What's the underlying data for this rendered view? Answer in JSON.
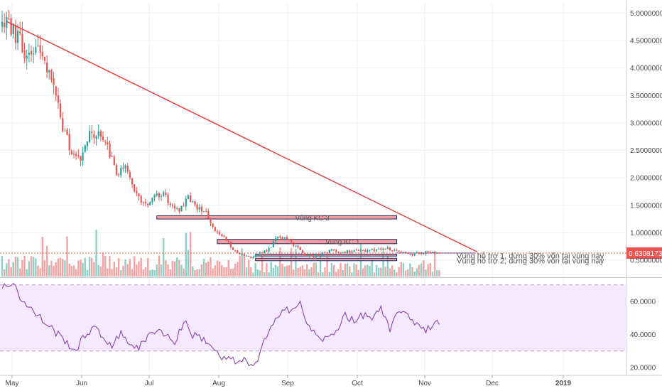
{
  "chart_data": {
    "type": "candlestick",
    "colors": {
      "up": "#26a69a",
      "down": "#ef5350",
      "up_vol": "#8fd0c6",
      "down_vol": "#f4a3a3",
      "trendline": "#e53935",
      "rsi": "#8e44ad",
      "rsi_band": "#f3e8fd",
      "price_tag": "#ef5350",
      "zone_fill": "#f28b96",
      "zone_border": "#1f2d5c"
    },
    "x_ticks": [
      "May",
      "Jun",
      "Jul",
      "Aug",
      "Sep",
      "Oct",
      "Nov",
      "Dec",
      "2019"
    ],
    "price_axis": {
      "ticks": [
        "5.0000000",
        "4.5000000",
        "4.0000000",
        "3.5000000",
        "3.0000000",
        "2.5000000",
        "2.0000000",
        "1.5000000",
        "1.0000000",
        "0.5000000"
      ],
      "ylim": [
        0.26,
        5.12
      ]
    },
    "last_price": {
      "value": 0.63,
      "label": "0.6308173"
    },
    "trendline": {
      "from": [
        "2018-04-29",
        4.85
      ],
      "to": [
        "2018-11-25",
        0.65
      ]
    },
    "zones": [
      {
        "label": "Vùng KC 2",
        "from": "2018-07-05",
        "to": "2018-10-20",
        "low": 1.25,
        "high": 1.31
      },
      {
        "label": "Vùng KC 1",
        "from": "2018-08-01",
        "to": "2018-10-20",
        "low": 0.8,
        "high": 0.88
      },
      {
        "label": "",
        "from": "2018-08-18",
        "to": "2018-10-20",
        "low": 0.575,
        "high": 0.61
      },
      {
        "label": "",
        "from": "2018-08-18",
        "to": "2018-10-20",
        "low": 0.49,
        "high": 0.535
      }
    ],
    "annotations": [
      "Vùng hỗ trợ 1, dừng 30% vốn tại vùng này",
      "Vùng hỗ trợ 2, dừng 30% vốn tại vùng này"
    ],
    "price_anchors": [
      [
        "2018-04-27",
        4.75
      ],
      [
        "2018-04-30",
        4.85
      ],
      [
        "2018-05-04",
        4.55
      ],
      [
        "2018-05-08",
        4.25
      ],
      [
        "2018-05-12",
        4.4
      ],
      [
        "2018-05-16",
        4.05
      ],
      [
        "2018-05-20",
        3.75
      ],
      [
        "2018-05-24",
        2.95
      ],
      [
        "2018-05-28",
        2.45
      ],
      [
        "2018-06-01",
        2.35
      ],
      [
        "2018-06-05",
        2.8
      ],
      [
        "2018-06-09",
        2.75
      ],
      [
        "2018-06-13",
        2.55
      ],
      [
        "2018-06-17",
        2.1
      ],
      [
        "2018-06-21",
        2.25
      ],
      [
        "2018-06-25",
        1.8
      ],
      [
        "2018-06-29",
        1.5
      ],
      [
        "2018-07-03",
        1.62
      ],
      [
        "2018-07-07",
        1.72
      ],
      [
        "2018-07-11",
        1.55
      ],
      [
        "2018-07-15",
        1.4
      ],
      [
        "2018-07-19",
        1.65
      ],
      [
        "2018-07-23",
        1.45
      ],
      [
        "2018-07-27",
        1.35
      ],
      [
        "2018-07-31",
        1.0
      ],
      [
        "2018-08-04",
        0.92
      ],
      [
        "2018-08-08",
        0.7
      ],
      [
        "2018-08-12",
        0.6
      ],
      [
        "2018-08-16",
        0.55
      ],
      [
        "2018-08-20",
        0.62
      ],
      [
        "2018-08-24",
        0.7
      ],
      [
        "2018-08-28",
        0.95
      ],
      [
        "2018-09-01",
        0.9
      ],
      [
        "2018-09-05",
        0.75
      ],
      [
        "2018-09-09",
        0.6
      ],
      [
        "2018-09-13",
        0.57
      ],
      [
        "2018-09-17",
        0.62
      ],
      [
        "2018-09-21",
        0.68
      ],
      [
        "2018-09-25",
        0.64
      ],
      [
        "2018-09-29",
        0.66
      ],
      [
        "2018-10-03",
        0.69
      ],
      [
        "2018-10-07",
        0.66
      ],
      [
        "2018-10-11",
        0.7
      ],
      [
        "2018-10-15",
        0.72
      ],
      [
        "2018-10-19",
        0.67
      ],
      [
        "2018-10-23",
        0.64
      ],
      [
        "2018-10-27",
        0.61
      ],
      [
        "2018-11-01",
        0.64
      ],
      [
        "2018-11-05",
        0.65
      ],
      [
        "2018-11-09",
        0.63
      ]
    ],
    "rsi_axis": {
      "ticks": [
        "60.0000",
        "40.0000",
        "20.0000"
      ],
      "ylim": [
        18,
        76
      ],
      "band": [
        30,
        70
      ]
    },
    "rsi_anchors": [
      [
        "2018-04-27",
        68
      ],
      [
        "2018-05-02",
        72
      ],
      [
        "2018-05-06",
        60
      ],
      [
        "2018-05-10",
        55
      ],
      [
        "2018-05-14",
        50
      ],
      [
        "2018-05-18",
        45
      ],
      [
        "2018-05-22",
        40
      ],
      [
        "2018-05-26",
        35
      ],
      [
        "2018-05-30",
        30
      ],
      [
        "2018-06-03",
        40
      ],
      [
        "2018-06-07",
        44
      ],
      [
        "2018-06-11",
        38
      ],
      [
        "2018-06-15",
        34
      ],
      [
        "2018-06-19",
        40
      ],
      [
        "2018-06-23",
        35
      ],
      [
        "2018-06-27",
        32
      ],
      [
        "2018-07-01",
        38
      ],
      [
        "2018-07-05",
        44
      ],
      [
        "2018-07-09",
        40
      ],
      [
        "2018-07-13",
        35
      ],
      [
        "2018-07-17",
        48
      ],
      [
        "2018-07-21",
        40
      ],
      [
        "2018-07-25",
        38
      ],
      [
        "2018-07-29",
        34
      ],
      [
        "2018-08-02",
        26
      ],
      [
        "2018-08-06",
        25
      ],
      [
        "2018-08-10",
        23
      ],
      [
        "2018-08-14",
        24
      ],
      [
        "2018-08-18",
        21
      ],
      [
        "2018-08-22",
        36
      ],
      [
        "2018-08-26",
        45
      ],
      [
        "2018-08-30",
        57
      ],
      [
        "2018-09-03",
        55
      ],
      [
        "2018-09-07",
        58
      ],
      [
        "2018-09-11",
        44
      ],
      [
        "2018-09-15",
        38
      ],
      [
        "2018-09-19",
        37
      ],
      [
        "2018-09-23",
        42
      ],
      [
        "2018-09-27",
        53
      ],
      [
        "2018-10-01",
        47
      ],
      [
        "2018-10-05",
        52
      ],
      [
        "2018-10-09",
        50
      ],
      [
        "2018-10-13",
        55
      ],
      [
        "2018-10-17",
        42
      ],
      [
        "2018-10-21",
        56
      ],
      [
        "2018-10-25",
        50
      ],
      [
        "2018-10-29",
        47
      ],
      [
        "2018-11-02",
        43
      ],
      [
        "2018-11-06",
        47
      ],
      [
        "2018-11-10",
        45
      ]
    ]
  }
}
